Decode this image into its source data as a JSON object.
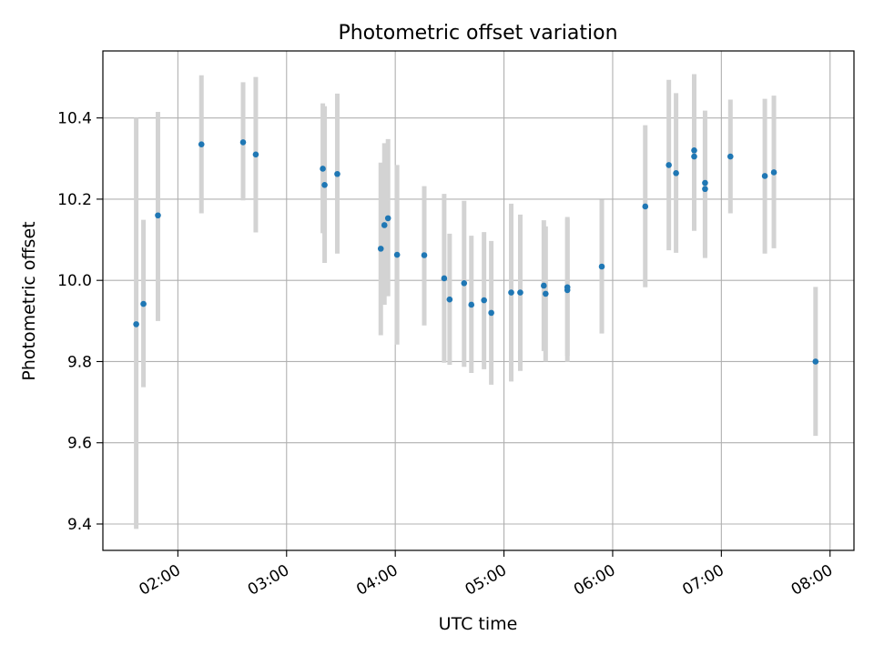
{
  "chart_data": {
    "type": "scatter",
    "title": "Photometric offset variation",
    "xlabel": "UTC time",
    "ylabel": "Photometric offset",
    "x_tick_labels": [
      "02:00",
      "03:00",
      "04:00",
      "05:00",
      "06:00",
      "07:00",
      "08:00"
    ],
    "x_tick_hours": [
      2,
      3,
      4,
      5,
      6,
      7,
      8
    ],
    "y_tick_labels": [
      "9.4",
      "9.6",
      "9.8",
      "10.0",
      "10.2",
      "10.4"
    ],
    "y_tick_values": [
      9.4,
      9.6,
      9.8,
      10.0,
      10.2,
      10.4
    ],
    "xlim_hours": [
      1.31,
      8.22
    ],
    "ylim": [
      9.335,
      10.565
    ],
    "grid": true,
    "colors": {
      "point": "#1f77b4",
      "errorbar": "#d3d3d3",
      "grid": "#b0b0b0"
    },
    "points": [
      {
        "x": "01:37",
        "y": 9.892,
        "err_lo": 9.388,
        "err_hi": 10.4
      },
      {
        "x": "01:41",
        "y": 9.942,
        "err_lo": 9.737,
        "err_hi": 10.149
      },
      {
        "x": "01:49",
        "y": 10.16,
        "err_lo": 9.9,
        "err_hi": 10.415
      },
      {
        "x": "02:13",
        "y": 10.335,
        "err_lo": 10.165,
        "err_hi": 10.505
      },
      {
        "x": "02:36",
        "y": 10.34,
        "err_lo": 10.197,
        "err_hi": 10.488
      },
      {
        "x": "02:43",
        "y": 10.31,
        "err_lo": 10.118,
        "err_hi": 10.501
      },
      {
        "x": "03:20",
        "y": 10.275,
        "err_lo": 10.116,
        "err_hi": 10.436
      },
      {
        "x": "03:21",
        "y": 10.235,
        "err_lo": 10.043,
        "err_hi": 10.429
      },
      {
        "x": "03:28",
        "y": 10.262,
        "err_lo": 10.066,
        "err_hi": 10.46
      },
      {
        "x": "03:52",
        "y": 10.078,
        "err_lo": 9.865,
        "err_hi": 10.29
      },
      {
        "x": "03:54",
        "y": 10.136,
        "err_lo": 9.94,
        "err_hi": 10.338
      },
      {
        "x": "03:56",
        "y": 10.153,
        "err_lo": 9.961,
        "err_hi": 10.348
      },
      {
        "x": "04:01",
        "y": 10.063,
        "err_lo": 9.842,
        "err_hi": 10.284
      },
      {
        "x": "04:16",
        "y": 10.062,
        "err_lo": 9.889,
        "err_hi": 10.232
      },
      {
        "x": "04:27",
        "y": 10.005,
        "err_lo": 9.797,
        "err_hi": 10.213
      },
      {
        "x": "04:30",
        "y": 9.953,
        "err_lo": 9.792,
        "err_hi": 10.115
      },
      {
        "x": "04:38",
        "y": 9.993,
        "err_lo": 9.787,
        "err_hi": 10.196
      },
      {
        "x": "04:42",
        "y": 9.94,
        "err_lo": 9.772,
        "err_hi": 10.11
      },
      {
        "x": "04:49",
        "y": 9.951,
        "err_lo": 9.781,
        "err_hi": 10.119
      },
      {
        "x": "04:53",
        "y": 9.92,
        "err_lo": 9.743,
        "err_hi": 10.097
      },
      {
        "x": "05:04",
        "y": 9.97,
        "err_lo": 9.751,
        "err_hi": 10.189
      },
      {
        "x": "05:09",
        "y": 9.97,
        "err_lo": 9.777,
        "err_hi": 10.162
      },
      {
        "x": "05:22",
        "y": 9.987,
        "err_lo": 9.826,
        "err_hi": 10.148
      },
      {
        "x": "05:23",
        "y": 9.967,
        "err_lo": 9.8,
        "err_hi": 10.133
      },
      {
        "x": "05:35",
        "y": 9.983,
        "err_lo": 9.814,
        "err_hi": 10.156
      },
      {
        "x": "05:35",
        "y": 9.976,
        "err_lo": 9.799,
        "err_hi": 10.151
      },
      {
        "x": "05:54",
        "y": 10.034,
        "err_lo": 9.869,
        "err_hi": 10.199
      },
      {
        "x": "06:18",
        "y": 10.182,
        "err_lo": 9.983,
        "err_hi": 10.382
      },
      {
        "x": "06:31",
        "y": 10.284,
        "err_lo": 10.074,
        "err_hi": 10.494
      },
      {
        "x": "06:35",
        "y": 10.264,
        "err_lo": 10.068,
        "err_hi": 10.461
      },
      {
        "x": "06:45",
        "y": 10.305,
        "err_lo": 10.122,
        "err_hi": 10.488
      },
      {
        "x": "06:45",
        "y": 10.32,
        "err_lo": 10.131,
        "err_hi": 10.508
      },
      {
        "x": "06:51",
        "y": 10.24,
        "err_lo": 10.062,
        "err_hi": 10.418
      },
      {
        "x": "06:51",
        "y": 10.225,
        "err_lo": 10.055,
        "err_hi": 10.394
      },
      {
        "x": "07:05",
        "y": 10.305,
        "err_lo": 10.165,
        "err_hi": 10.445
      },
      {
        "x": "07:24",
        "y": 10.257,
        "err_lo": 10.066,
        "err_hi": 10.447
      },
      {
        "x": "07:29",
        "y": 10.266,
        "err_lo": 10.079,
        "err_hi": 10.455
      },
      {
        "x": "07:52",
        "y": 9.8,
        "err_lo": 9.617,
        "err_hi": 9.984
      }
    ]
  }
}
